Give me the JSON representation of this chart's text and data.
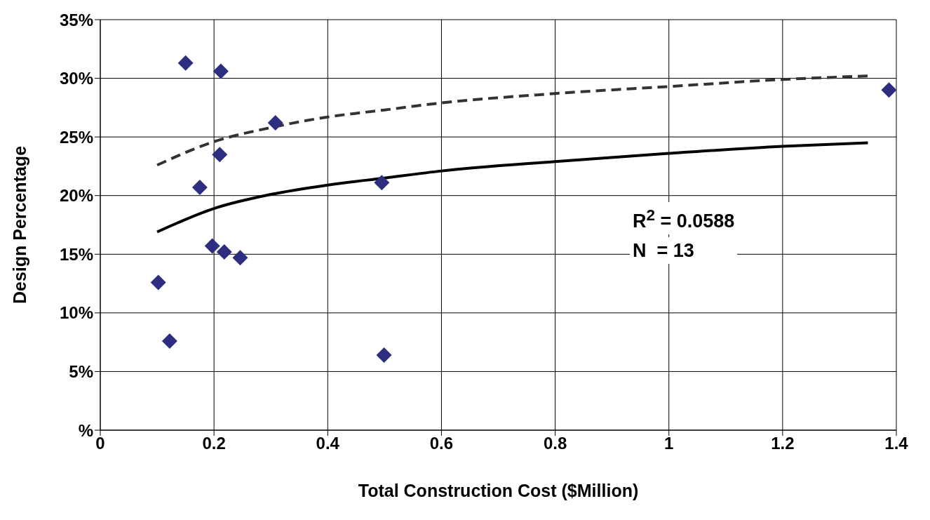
{
  "chart_data": {
    "type": "scatter",
    "xlabel": "Total Construction Cost ($Million)",
    "ylabel": "Design Percentage",
    "xlim": [
      0,
      1.4
    ],
    "xticks": [
      0,
      0.2,
      0.4,
      0.6,
      0.8,
      1,
      1.2,
      1.4
    ],
    "ylim": [
      0,
      35
    ],
    "yticks": [
      {
        "value": 0,
        "label": "%"
      },
      {
        "value": 5,
        "label": "5%"
      },
      {
        "value": 10,
        "label": "10%"
      },
      {
        "value": 15,
        "label": "15%"
      },
      {
        "value": 20,
        "label": "20%"
      },
      {
        "value": 25,
        "label": "25%"
      },
      {
        "value": 30,
        "label": "30%"
      },
      {
        "value": 35,
        "label": "35%"
      }
    ],
    "grid": true,
    "series": [
      {
        "marker": "diamond",
        "color": "#2e2e80",
        "x": [
          0.102,
          0.122,
          0.15,
          0.175,
          0.197,
          0.21,
          0.212,
          0.218,
          0.246,
          0.308,
          0.495,
          0.499,
          1.387
        ],
        "values": [
          12.6,
          7.6,
          31.3,
          20.7,
          15.7,
          23.5,
          30.6,
          15.2,
          14.7,
          26.2,
          21.1,
          6.4,
          29
        ]
      },
      {
        "type": "line",
        "marker": "none",
        "color": "#000000",
        "line_style": "solid",
        "x": [
          0.1,
          0.2,
          0.3,
          0.4,
          0.5,
          0.6,
          0.8,
          1,
          1.2,
          1.35
        ],
        "values": [
          16.9,
          18.9,
          20.1,
          20.9,
          21.5,
          22.1,
          22.9,
          23.6,
          24.2,
          24.5
        ]
      },
      {
        "type": "line",
        "marker": "none",
        "color": "#333333",
        "line_style": "dashed",
        "x": [
          0.1,
          0.2,
          0.3,
          0.4,
          0.5,
          0.6,
          0.8,
          1,
          1.2,
          1.35
        ],
        "values": [
          22.6,
          24.6,
          25.8,
          26.7,
          27.3,
          27.9,
          28.7,
          29.3,
          29.9,
          30.2
        ]
      }
    ],
    "annotations": [
      "R$^{2}$ = 0.0588",
      "N  = 13"
    ]
  }
}
